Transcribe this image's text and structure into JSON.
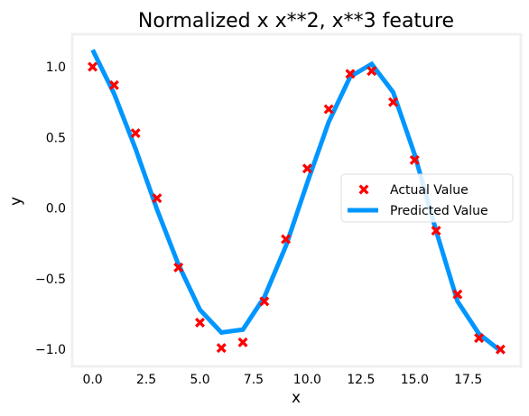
{
  "chart_data": {
    "type": "scatter+line",
    "title": "Normalized x x**2, x**3 feature",
    "xlabel": "x",
    "ylabel": "y",
    "xlim": [
      -0.95,
      19.95
    ],
    "ylim": [
      -1.12,
      1.23
    ],
    "xticks": [
      0.0,
      2.5,
      5.0,
      7.5,
      10.0,
      12.5,
      15.0,
      17.5
    ],
    "xtick_labels": [
      "0.0",
      "2.5",
      "5.0",
      "7.5",
      "10.0",
      "12.5",
      "15.0",
      "17.5"
    ],
    "yticks": [
      1.0,
      0.5,
      0.0,
      -0.5,
      -1.0
    ],
    "ytick_labels": [
      "1.0",
      "0.5",
      "0.0",
      "−0.5",
      "−1.0"
    ],
    "grid": false,
    "legend_position": "center-right",
    "series": [
      {
        "name": "Actual Value",
        "kind": "scatter",
        "marker": "X",
        "color": "#ff0000",
        "x": [
          0,
          1,
          2,
          3,
          4,
          5,
          6,
          7,
          8,
          9,
          10,
          11,
          12,
          13,
          14,
          15,
          16,
          17,
          18,
          19
        ],
        "y": [
          1.0,
          0.87,
          0.53,
          0.07,
          -0.42,
          -0.81,
          -0.99,
          -0.95,
          -0.66,
          -0.22,
          0.28,
          0.7,
          0.95,
          0.97,
          0.75,
          0.34,
          -0.16,
          -0.61,
          -0.92,
          -1.0
        ]
      },
      {
        "name": "Predicted Value",
        "kind": "line",
        "color": "#0096ff",
        "x": [
          0,
          1,
          2,
          3,
          4,
          5,
          6,
          7,
          8,
          9,
          10,
          11,
          12,
          13,
          14,
          15,
          16,
          17,
          18,
          19
        ],
        "y": [
          1.12,
          0.81,
          0.42,
          -0.01,
          -0.4,
          -0.72,
          -0.88,
          -0.86,
          -0.63,
          -0.27,
          0.18,
          0.61,
          0.93,
          1.02,
          0.82,
          0.38,
          -0.16,
          -0.66,
          -0.89,
          -1.01
        ]
      }
    ]
  },
  "colors": {
    "axes_spine": "#f0f0f0",
    "actual": "#ff0000",
    "predicted": "#0096ff"
  }
}
